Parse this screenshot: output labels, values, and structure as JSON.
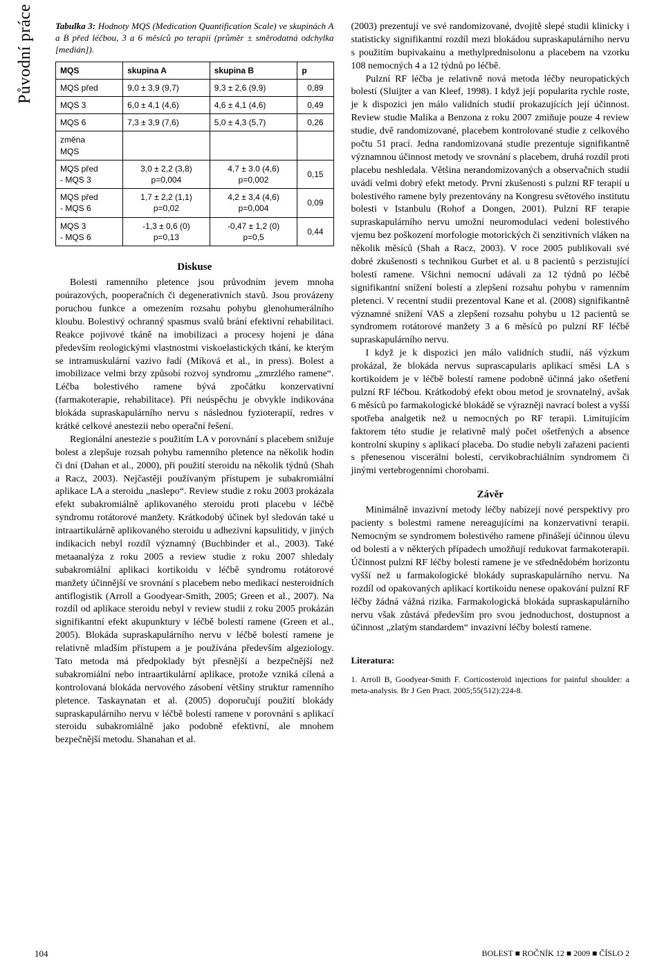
{
  "sidebar": {
    "label": "Původní práce"
  },
  "table": {
    "captionBold": "Tabulka 3:",
    "captionRest": " Hodnoty MQS (Medication Quantification Scale) ve skupinách A a B před léčbou, 3 a 6 měsíců po terapii (průměr ± směrodatná odchylka [medián]).",
    "headers": [
      "MQS",
      "skupina A",
      "skupina B",
      "p"
    ],
    "rows": [
      {
        "h": "MQS před",
        "a": "9,0 ± 3,9 (9,7)",
        "b": "9,3 ± 2,6 (9,9)",
        "p": "0,89"
      },
      {
        "h": "MQS 3",
        "a": "6,0 ± 4,1 (4,6)",
        "b": "4,6 ± 4,1 (4,6)",
        "p": "0,49"
      },
      {
        "h": "MQS 6",
        "a": "7,3 ± 3,9 (7,6)",
        "b": "5,0 ± 4,3 (5,7)",
        "p": "0,26"
      },
      {
        "h": "změna\nMQS",
        "a": "",
        "b": "",
        "p": ""
      },
      {
        "h": "MQS před\n- MQS 3",
        "a": "3,0 ± 2,2 (3,8)\np=0,004",
        "b": "4,7 ± 3.0 (4,6)\np=0,002",
        "p": "0,15"
      },
      {
        "h": "MQS před\n- MQS 6",
        "a": "1,7 ± 2,2 (1,1)\np=0,02",
        "b": "4,2 ± 3,4 (4,6)\np=0,004",
        "p": "0,09"
      },
      {
        "h": "MQS 3\n- MQS 6",
        "a": "-1,3 ± 0,6 (0)\np=0,13",
        "b": "-0,47 ± 1,2 (0)\np=0,5",
        "p": "0,44"
      }
    ]
  },
  "sections": {
    "diskuse": "Diskuse",
    "zaver": "Závěr"
  },
  "left": {
    "p1": "Bolesti ramenního pletence jsou průvodním jevem mnoha poúrazových, pooperačních či degenerativních stavů. Jsou provázeny poruchou funkce a omezením rozsahu pohybu glenohumerálního kloubu. Bolestivý ochranný spasmus svalů brání efektivní rehabilitaci. Reakce pojivové tkáně na imobilizaci a procesy hojení je dána především reologickými vlastnostmi viskoelastických tkání, ke kterým se intramuskulární vazivo řadí (Míková et al., in press). Bolest a imobilizace velmi brzy způsobí rozvoj syndromu „zmrzlého ramene“. Léčba bolestivého ramene bývá zpočátku konzervativní (farmakoterapie, rehabilitace). Při neúspěchu je obvykle indikována blokáda supraskapulárního nervu s následnou fyzioterapií, redres v krátké celkové anestezii nebo operační řešení.",
    "p2": "Regionální anestezie s použitím LA v porovnání s placebem snižuje bolest a zlepšuje rozsah pohybu ramenního pletence na několik hodin či dní (Dahan et al., 2000), při použití steroidu na několik týdnů (Shah a Racz, 2003). Nejčastěji používaným přístupem je subakromiální aplikace LA a steroidu „naslepo“. Review studie z roku 2003 prokázala efekt subakromiálně aplikovaného steroidu proti placebu v léčbě syndromu rotátorové manžety. Krátkodobý účinek byl sledován také u intraartikulárně aplikovaného steroidu u adhezivní kapsulitidy, v jiných indikacích nebyl rozdíl významný (Buchbinder et al., 2003). Také metaanalýza z roku 2005 a review studie z roku 2007 shledaly subakromiální aplikaci kortikoidu v léčbě syndromu rotátorové manžety účinnější ve srovnání s placebem nebo medikací nesteroidních antiflogistik (Arroll a Goodyear-Smith, 2005; Green et al., 2007). Na rozdíl od aplikace steroidu nebyl v review studii z roku 2005 prokázán signifikantní efekt akupunktury v léčbě bolestí ramene (Green et al., 2005). Blokáda supraskapulárního nervu v léčbě bolestí ramene je relativně mladším přístupem a je používána především algeziology. Tato metoda má předpoklady být přesnější a bezpečnější než subakromiální nebo intraartikulární aplikace, protože vzniká cílená a kontrolovaná blokáda nervového zásobení většiny struktur ramenního pletence. Taskaynatan et al. (2005) doporučují použití blokády supraskapulárního nervu v léčbě bolestí ramene v porovnání s aplikací steroidu subakromiálně jako podobně efektivní, ale mnohem bezpečnější metodu. Shanahan et al."
  },
  "right": {
    "p1": "(2003) prezentují ve své randomizované, dvojitě slepé studii klinicky i statisticky signifikantní rozdíl mezi blokádou supraskapulárního nervu s použitím bupivakainu a methylprednisolonu a placebem na vzorku 108 nemocných 4 a 12 týdnů po léčbě.",
    "p2": "Pulzní RF léčba je relativně nová metoda léčby neuropatických bolestí (Sluijter a van Kleef, 1998). I když její popularita rychle roste, je k dispozici jen málo validních studií prokazujících její účinnost. Review studie Malika a Benzona z roku 2007 zmiňuje pouze 4 review studie, dvě randomizované, placebem kontrolované studie z celkového počtu 51 prací. Jedna randomizovaná studie prezentuje signifikantně významnou účinnost metody ve srovnání s placebem, druhá rozdíl proti placebu neshledala. Většina nerandomizovaných a observačních studií uvádí velmi dobrý efekt metody. První zkušenosti s pulzní RF terapií u bolestivého ramene byly prezentovány na Kongresu světového institutu bolesti v Istanbulu (Rohof a Dongen, 2001). Pulzní RF terapie supraskapulárního nervu umožní neuromodulaci vedení bolestivého vjemu bez poškození morfologie motorických či senzitivních vláken na několik měsíců (Shah a Racz, 2003). V roce 2005 publikovali své dobré zkušenosti s technikou Gurbet et al. u 8 pacientů s perzistující bolestí ramene. Všichni nemocní udávali za 12 týdnů po léčbě signifikantní snížení bolestí a zlepšení rozsahu pohybu v ramenním pletenci. V recentní studii prezentoval Kane et al. (2008) signifikantně významné snížení VAS a zlepšení rozsahu pohybu u 12 pacientů se syndromem rotátorové manžety 3 a 6 měsíců po pulzní RF léčbě supraskapulárního nervu.",
    "p3": "I když je k dispozici jen málo validních studií, náš výzkum prokázal, že blokáda nervus suprascapularis aplikací směsi LA s kortikoidem je v léčbě bolestí ramene podobně účinná jako ošetření pulzní RF léčbou. Krátkodobý efekt obou metod je srovnatelný, avšak 6 měsíců po farmakologické blokádě se výrazněji navrací bolest a vyšší spotřeba analgetik než u nemocných po RF terapii. Limitujícím faktorem této studie je relativně malý počet ošetřených a absence kontrolní skupiny s aplikací placeba. Do studie nebyli zařazeni pacienti s přenesenou viscerální bolestí, cervikobrachiálním syndromem či jinými vertebrogenními chorobami.",
    "p4": "Minimálně invazivní metody léčby nabízejí nové perspektivy pro pacienty s bolestmi ramene nereagujícími na konzervativní terapii. Nemocným se syndromem bolestivého ramene přinášejí účinnou úlevu od bolestí a v některých případech umožňují redukovat farmakoterapii. Účinnost pulzní RF léčby bolestí ramene je ve střednědobém horizontu vyšší než u farmakologické blokády supraskapulárního nervu. Na rozdíl od opakovaných aplikací kortikoidu nenese opakování pulzní RF léčby žádná vážná rizika. Farmakologická blokáda supraskapulárního nervu však zůstává především pro svou jednoduchost, dostupnost a účinnost „zlatým standardem“ invazivní léčby bolestí ramene."
  },
  "literature": {
    "label": "Literatura:",
    "item1": "1. Arroll B, Goodyear-Smith F. Corticosteroid injections for painful shoulder: a meta-analysis. Br J Gen Pract. 2005;55(512):224-8."
  },
  "footer": {
    "page": "104",
    "journal": "BOLEST ■ ROČNÍK 12 ■ 2009 ■ ČÍSLO 2"
  }
}
